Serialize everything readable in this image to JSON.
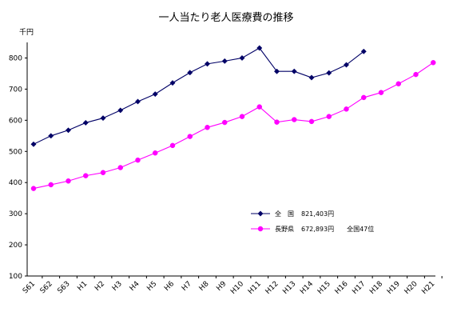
{
  "chart_data": {
    "type": "line",
    "title": "一人当たり老人医療費の推移",
    "ylabel": "千円",
    "xlabel": "",
    "ylim": [
      100,
      850
    ],
    "yticks": [
      100,
      200,
      300,
      400,
      500,
      600,
      700,
      800
    ],
    "categories": [
      "S61",
      "S62",
      "S63",
      "H1",
      "H2",
      "H3",
      "H4",
      "H5",
      "H6",
      "H7",
      "H8",
      "H9",
      "H10",
      "H11",
      "H12",
      "H13",
      "H14",
      "H15",
      "H16",
      "H17",
      "H18",
      "H19",
      "H20",
      "H21"
    ],
    "grid": false,
    "legend_position": "lower-right",
    "series": [
      {
        "name": "全　国",
        "annotation": "821,403円",
        "color": "#000066",
        "marker": "diamond",
        "values": [
          523,
          550,
          568,
          592,
          607,
          632,
          660,
          684,
          720,
          753,
          781,
          790,
          800,
          832,
          757,
          757,
          737,
          752,
          778,
          821,
          null,
          null,
          null,
          null
        ]
      },
      {
        "name": "長野県",
        "annotation": "672,893円　　全国47位",
        "color": "#ff00ff",
        "marker": "circle",
        "values": [
          381,
          393,
          405,
          422,
          432,
          448,
          472,
          495,
          519,
          548,
          577,
          593,
          612,
          643,
          594,
          602,
          596,
          612,
          636,
          673,
          689,
          717,
          747,
          785
        ]
      }
    ]
  }
}
